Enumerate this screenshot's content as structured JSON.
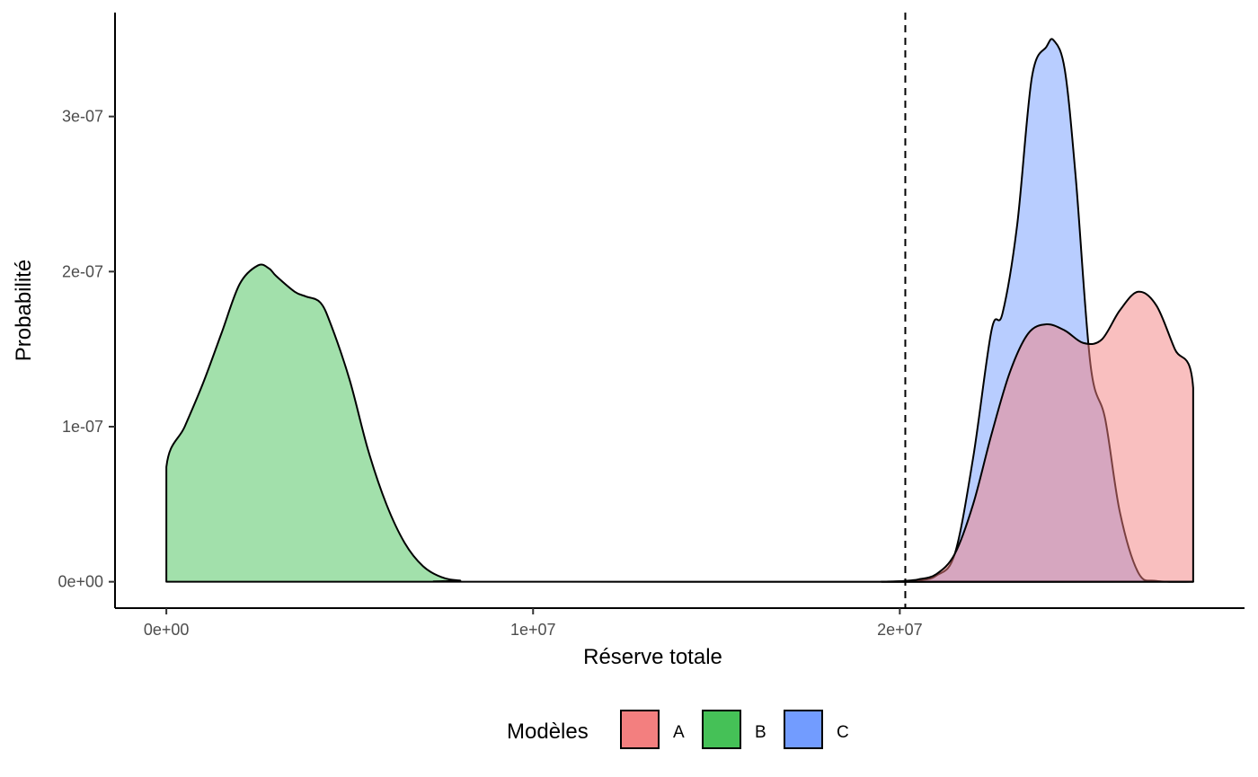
{
  "chart_data": {
    "type": "area",
    "subtype": "density",
    "title": "",
    "xlabel": "Réserve totale",
    "ylabel": "Probabilité",
    "xlim": [
      -1400000,
      29400000
    ],
    "ylim": [
      -1.7e-08,
      3.67e-07
    ],
    "x_ticks": [
      {
        "value": 0,
        "label": "0e+00"
      },
      {
        "value": 10000000,
        "label": "1e+07"
      },
      {
        "value": 20000000,
        "label": "2e+07"
      }
    ],
    "y_ticks": [
      {
        "value": 0,
        "label": "0e+00"
      },
      {
        "value": 1e-07,
        "label": "1e-07"
      },
      {
        "value": 2e-07,
        "label": "2e-07"
      },
      {
        "value": 3e-07,
        "label": "3e-07"
      }
    ],
    "grid": false,
    "legend": {
      "title": "Modèles",
      "position": "bottom"
    },
    "reference_line": {
      "x": 20150000,
      "style": "dashed",
      "color": "#000000"
    },
    "series": [
      {
        "name": "B",
        "fill": "#45C157",
        "fill_opacity": 0.5,
        "points": [
          [
            0,
            0
          ],
          [
            0,
            7.4e-08
          ],
          [
            500000,
            1e-07
          ],
          [
            1000000,
            1.28e-07
          ],
          [
            1500000,
            1.6e-07
          ],
          [
            2000000,
            1.92e-07
          ],
          [
            2500000,
            2.04e-07
          ],
          [
            2800000,
            2.02e-07
          ],
          [
            3000000,
            1.97e-07
          ],
          [
            3500000,
            1.87e-07
          ],
          [
            3800000,
            1.84e-07
          ],
          [
            4200000,
            1.8e-07
          ],
          [
            4500000,
            1.65e-07
          ],
          [
            5000000,
            1.3e-07
          ],
          [
            5500000,
            8.5e-08
          ],
          [
            6000000,
            5e-08
          ],
          [
            6500000,
            2.5e-08
          ],
          [
            7000000,
            1e-08
          ],
          [
            7500000,
            3e-09
          ],
          [
            8000000,
            8e-10
          ],
          [
            9000000,
            0
          ],
          [
            28000000,
            0
          ]
        ]
      },
      {
        "name": "C",
        "fill": "#729CFF",
        "fill_opacity": 0.5,
        "points": [
          [
            19500000,
            0
          ],
          [
            20500000,
            1e-09
          ],
          [
            21000000,
            4e-09
          ],
          [
            21500000,
            1.8e-08
          ],
          [
            22000000,
            8e-08
          ],
          [
            22500000,
            1.62e-07
          ],
          [
            22800000,
            1.73e-07
          ],
          [
            23200000,
            2.3e-07
          ],
          [
            23600000,
            3.25e-07
          ],
          [
            24000000,
            3.45e-07
          ],
          [
            24200000,
            3.49e-07
          ],
          [
            24500000,
            3.3e-07
          ],
          [
            24800000,
            2.6e-07
          ],
          [
            25200000,
            1.4e-07
          ],
          [
            25600000,
            1.05e-07
          ],
          [
            26000000,
            4.5e-08
          ],
          [
            26500000,
            6e-09
          ],
          [
            27000000,
            5e-10
          ],
          [
            28000000,
            0
          ]
        ]
      },
      {
        "name": "A",
        "fill": "#F37F7F",
        "fill_opacity": 0.5,
        "points": [
          [
            19500000,
            0
          ],
          [
            20000000,
            3e-10
          ],
          [
            20500000,
            1.5e-09
          ],
          [
            21000000,
            5e-09
          ],
          [
            21500000,
            1.8e-08
          ],
          [
            22000000,
            5e-08
          ],
          [
            22500000,
            9.5e-08
          ],
          [
            23000000,
            1.35e-07
          ],
          [
            23500000,
            1.6e-07
          ],
          [
            24000000,
            1.66e-07
          ],
          [
            24500000,
            1.62e-07
          ],
          [
            25000000,
            1.54e-07
          ],
          [
            25500000,
            1.56e-07
          ],
          [
            26000000,
            1.75e-07
          ],
          [
            26500000,
            1.87e-07
          ],
          [
            27000000,
            1.78e-07
          ],
          [
            27500000,
            1.5e-07
          ],
          [
            28000000,
            1.25e-07
          ],
          [
            28000000,
            0
          ]
        ]
      }
    ]
  }
}
